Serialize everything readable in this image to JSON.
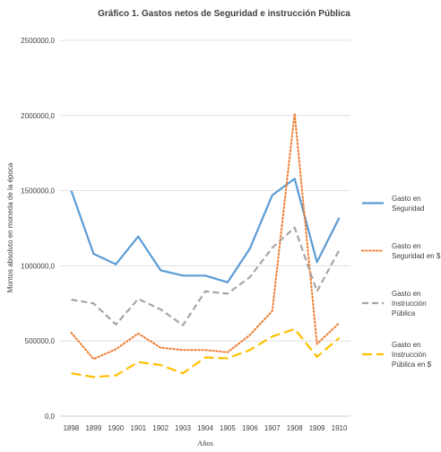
{
  "chart_data": {
    "type": "line",
    "title": "Gráfico 1. Gastos netos de Seguridad e instrucción Pública",
    "xlabel": "Años",
    "ylabel": "Montos absoluto en moneda de la época",
    "categories": [
      "1898",
      "1899",
      "1900",
      "1901",
      "1902",
      "1903",
      "1904",
      "1905",
      "1906",
      "1907",
      "1908",
      "1909",
      "1910"
    ],
    "yticks": [
      "0,0",
      "500000,0",
      "1000000,0",
      "1500000,0",
      "2000000,0",
      "2500000,0"
    ],
    "ylim": [
      0,
      2500000
    ],
    "grid": true,
    "legend_position": "right",
    "series": [
      {
        "name": "Gasto en Seguridad",
        "legend_lines": [
          "Gasto en",
          "Seguridad"
        ],
        "color": "#5b9bd5",
        "style": "solid",
        "values": [
          1500000,
          1080000,
          1010000,
          1195000,
          970000,
          935000,
          935000,
          890000,
          1115000,
          1470000,
          1580000,
          1025000,
          1320000
        ]
      },
      {
        "name": "Gasto en Seguridad en $",
        "legend_lines": [
          "Gasto en",
          "Seguridad en $"
        ],
        "color": "#ed7d31",
        "style": "dotted",
        "values": [
          555000,
          380000,
          445000,
          550000,
          455000,
          440000,
          440000,
          425000,
          540000,
          700000,
          2015000,
          480000,
          620000
        ]
      },
      {
        "name": "Gasto en Instrucción Pública",
        "legend_lines": [
          "Gasto en",
          "Instrucción",
          "Pública"
        ],
        "color": "#a5a5a5",
        "style": "dashed",
        "values": [
          775000,
          750000,
          610000,
          780000,
          710000,
          605000,
          830000,
          815000,
          925000,
          1120000,
          1255000,
          830000,
          1105000
        ]
      },
      {
        "name": "Gasto en Instrucción Pública en $",
        "legend_lines": [
          "Gasto en",
          "Instrucción",
          "Pública en $"
        ],
        "color": "#ffc000",
        "style": "longdash",
        "values": [
          285000,
          260000,
          270000,
          360000,
          340000,
          285000,
          390000,
          385000,
          440000,
          530000,
          580000,
          395000,
          520000
        ]
      }
    ]
  }
}
